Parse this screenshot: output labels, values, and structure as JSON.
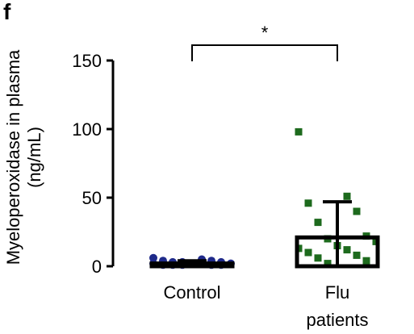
{
  "chart_data": {
    "type": "bar-scatter",
    "panel_label": "f",
    "y_label": "Myeloperoxidase in plasma (ng/mL)",
    "categories": [
      "Control",
      "Flu patients"
    ],
    "values": [
      2,
      21
    ],
    "errors": [
      2,
      26
    ],
    "colors": [
      "#1f2a8a",
      "#1d6a1d"
    ],
    "markers": [
      "circle",
      "square"
    ],
    "points": [
      [
        6,
        5,
        4,
        4,
        3,
        3,
        3,
        2,
        2,
        2,
        2,
        1,
        1,
        1,
        1,
        1
      ],
      [
        98,
        51,
        46,
        40,
        32,
        22,
        20,
        18,
        15,
        13,
        12,
        10,
        8,
        6,
        4,
        2
      ]
    ],
    "significance": {
      "label": "*",
      "between": [
        0,
        1
      ]
    },
    "ylim": [
      0,
      150
    ],
    "yticks": [
      0,
      50,
      100,
      150
    ]
  }
}
